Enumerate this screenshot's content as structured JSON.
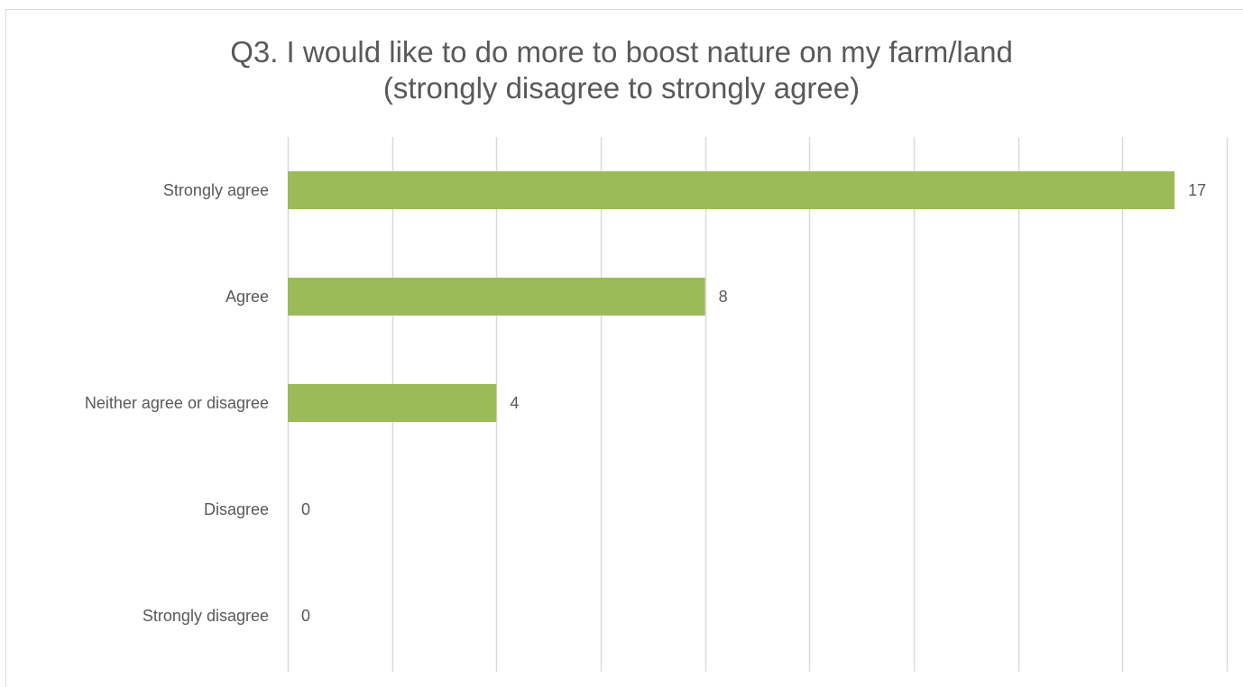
{
  "chart_data": {
    "type": "bar",
    "orientation": "horizontal",
    "title": "Q3. I would like to do more to boost nature on my farm/land",
    "subtitle": "(strongly disagree to strongly agree)",
    "categories": [
      "Strongly agree",
      "Agree",
      "Neither agree or disagree",
      "Disagree",
      "Strongly disagree"
    ],
    "values": [
      17,
      8,
      4,
      0,
      0
    ],
    "data_labels": [
      "17",
      "8",
      "4",
      "0",
      "0"
    ],
    "xlim": [
      0,
      18
    ],
    "gridlines": "vertical",
    "legend": "none",
    "bar_color": "#9bbb59",
    "gridline_color": "#d9d9d9",
    "text_color": "#595959"
  }
}
